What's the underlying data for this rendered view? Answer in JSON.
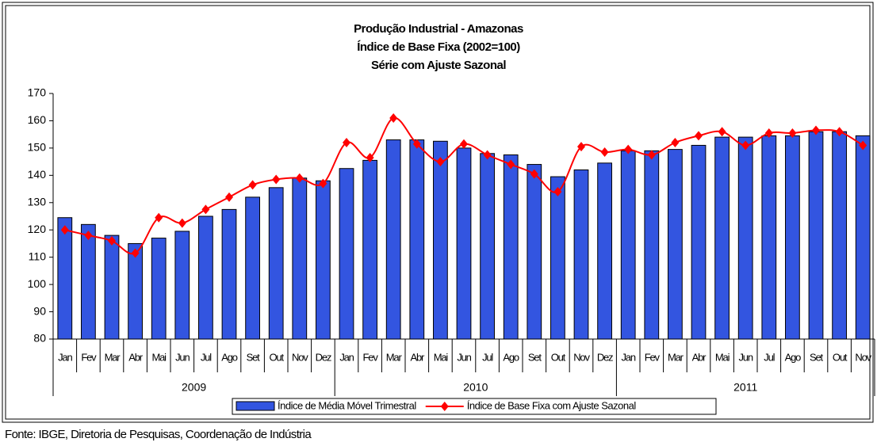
{
  "chart_data": {
    "type": "bar_line",
    "title": [
      "Produção Industrial - Amazonas",
      "Índice de Base Fixa (2002=100)",
      "Série com Ajuste Sazonal"
    ],
    "categories": [
      "Jan",
      "Fev",
      "Mar",
      "Abr",
      "Mai",
      "Jun",
      "Jul",
      "Ago",
      "Set",
      "Out",
      "Nov",
      "Dez",
      "Jan",
      "Fev",
      "Mar",
      "Abr",
      "Mai",
      "Jun",
      "Jul",
      "Ago",
      "Set",
      "Out",
      "Nov",
      "Dez",
      "Jan",
      "Fev",
      "Mar",
      "Abr",
      "Mai",
      "Jun",
      "Jul",
      "Ago",
      "Set",
      "Out",
      "Nov"
    ],
    "years": [
      "2009",
      "2010",
      "2011"
    ],
    "series": [
      {
        "name": "Índice de Média Móvel Trimestral",
        "type": "bar",
        "color": "#3355e0",
        "values": [
          124.5,
          122,
          118,
          115,
          117,
          119.5,
          125,
          127.5,
          132,
          135.5,
          139,
          138,
          142.5,
          145.5,
          153,
          153,
          152.5,
          150,
          148,
          147.5,
          144,
          139.5,
          142,
          144.5,
          149,
          149,
          149.5,
          151,
          154,
          154,
          154.5,
          154.5,
          156,
          156,
          154.5
        ]
      },
      {
        "name": "Índice de Base Fixa com Ajuste Sazonal",
        "type": "line",
        "color": "#ff0000",
        "values": [
          120,
          118,
          116,
          111.5,
          124.5,
          122.5,
          127.5,
          132,
          136.5,
          138.5,
          139,
          137,
          152,
          146.5,
          161,
          151.5,
          145,
          151.5,
          147.5,
          144,
          140.5,
          134,
          150.5,
          148.5,
          149.5,
          147.5,
          152,
          154.5,
          156,
          151,
          155.5,
          155.5,
          156.5,
          156,
          151
        ]
      }
    ],
    "ylim": [
      80,
      170
    ],
    "yticks": [
      80,
      90,
      100,
      110,
      120,
      130,
      140,
      150,
      160,
      170
    ],
    "source": "Fonte: IBGE, Diretoria de Pesquisas, Coordenação de Indústria"
  }
}
